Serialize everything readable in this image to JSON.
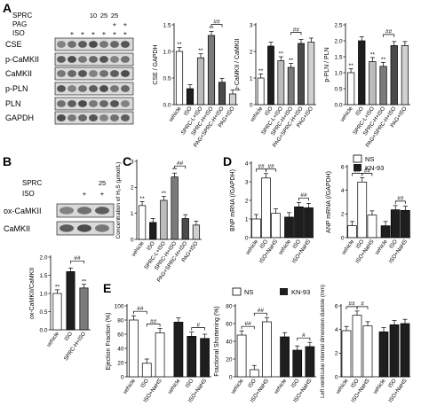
{
  "panel_letters": [
    "A",
    "B",
    "C",
    "D",
    "E"
  ],
  "blot_a": {
    "header_rows": [
      {
        "label": "SPRC",
        "marks": [
          "",
          "",
          "",
          "10",
          "25",
          "25",
          ""
        ]
      },
      {
        "label": "PAG",
        "marks": [
          "",
          "",
          "",
          "",
          "",
          "+",
          "+"
        ]
      },
      {
        "label": "ISO",
        "marks": [
          "",
          "+",
          "+",
          "+",
          "+",
          "+",
          "+"
        ]
      }
    ],
    "bands": [
      "CSE",
      "p-CaMKII",
      "CaMKII",
      "p-PLN",
      "PLN",
      "GAPDH"
    ]
  },
  "blot_b": {
    "header_rows": [
      {
        "label": "SPRC",
        "marks": [
          "",
          "",
          "25"
        ]
      },
      {
        "label": "ISO",
        "marks": [
          "",
          "+",
          "+"
        ]
      }
    ],
    "bands": [
      "ox-CaMKII",
      "CaMKII"
    ]
  },
  "colors": {
    "white_bar": "#ffffff",
    "black_bar": "#1e1e1e",
    "grey_bar": "#7a7a7a",
    "light_grey_bar": "#bcbcbc",
    "dark_grey_bar": "#4a4a4a",
    "blot_bg": "#d9d9d9",
    "blot_band": "#3a3a3a"
  },
  "chart_data": [
    {
      "type": "bar",
      "ylabel": "CSE / GAPDH",
      "ylim": [
        0,
        1.5
      ],
      "yticks": [
        "0.0",
        "0.5",
        "1.0",
        "1.5"
      ],
      "categories": [
        "vehicle",
        "ISO",
        "SPRC-L+ISO",
        "SPRC-H+ISO",
        "PAG+SPRC-H+ISO",
        "PAG+ISO"
      ],
      "values": [
        1.0,
        0.3,
        0.88,
        1.3,
        0.42,
        0.2
      ],
      "colors": [
        "#ffffff",
        "#1e1e1e",
        "#bcbcbc",
        "#7a7a7a",
        "#4a4a4a",
        "#d0d0d0"
      ],
      "marks": [
        "**",
        "",
        "**",
        "**",
        "##",
        ""
      ]
    },
    {
      "type": "bar",
      "ylabel": "p-CaMKII / CaMKII",
      "ylim": [
        0,
        3
      ],
      "yticks": [
        "0",
        "1",
        "2",
        "3"
      ],
      "categories": [
        "vehicle",
        "ISO",
        "SPRC-L+ISO",
        "SPRC-H+ISO",
        "PAG+SPRC-H+ISO",
        "PAG+ISO"
      ],
      "values": [
        1.0,
        2.2,
        1.65,
        1.4,
        2.3,
        2.35
      ],
      "colors": [
        "#ffffff",
        "#1e1e1e",
        "#bcbcbc",
        "#7a7a7a",
        "#4a4a4a",
        "#d0d0d0"
      ],
      "marks": [
        "**",
        "",
        "**",
        "**",
        "##",
        ""
      ]
    },
    {
      "type": "bar",
      "ylabel": "p-PLN / PLN",
      "ylim": [
        0,
        2.5
      ],
      "yticks": [
        "0.0",
        "0.5",
        "1.0",
        "1.5",
        "2.0",
        "2.5"
      ],
      "categories": [
        "vehicle",
        "ISO",
        "SPRC-L+ISO",
        "SPRC-H+ISO",
        "PAG+SPRC-H+ISO",
        "PAG+ISO"
      ],
      "values": [
        1.0,
        2.0,
        1.35,
        1.2,
        1.85,
        1.85
      ],
      "colors": [
        "#ffffff",
        "#1e1e1e",
        "#bcbcbc",
        "#7a7a7a",
        "#4a4a4a",
        "#d0d0d0"
      ],
      "marks": [
        "**",
        "",
        "**",
        "**",
        "##",
        ""
      ]
    },
    {
      "type": "bar",
      "ylabel": "ox-CaMKII/CaMKII",
      "ylim": [
        0,
        2
      ],
      "yticks": [
        "0.0",
        "0.5",
        "1.0",
        "1.5",
        "2.0"
      ],
      "categories": [
        "vehicle",
        "ISO",
        "SPRC-H+ISO"
      ],
      "values": [
        1.0,
        1.6,
        1.15
      ],
      "colors": [
        "#ffffff",
        "#1e1e1e",
        "#7a7a7a"
      ],
      "marks": [
        "**",
        "",
        "**"
      ],
      "bracket": "##"
    },
    {
      "type": "bar",
      "ylabel": "Concentration of H₂S (μmol/L)",
      "ylim": [
        0,
        3
      ],
      "yticks": [
        "0",
        "1",
        "2",
        "3"
      ],
      "categories": [
        "vehicle",
        "ISO",
        "SPRC-L+ISO",
        "SPRC-H+ISO",
        "PAG+SPRC-H+ISO",
        "PAG+ISO"
      ],
      "values": [
        1.3,
        0.65,
        1.5,
        2.4,
        0.8,
        0.55
      ],
      "colors": [
        "#ffffff",
        "#1e1e1e",
        "#bcbcbc",
        "#7a7a7a",
        "#4a4a4a",
        "#d0d0d0"
      ],
      "marks": [
        "**",
        "",
        "**",
        "**",
        "",
        ""
      ],
      "bracket": "##"
    },
    {
      "type": "bar",
      "ylabel": "BNP mRNA (/GAPDH)",
      "ylim": [
        0,
        4
      ],
      "yticks": [
        "0",
        "1",
        "2",
        "3",
        "4"
      ],
      "categories": [
        "vehicle",
        "ISO",
        "ISO+NaHS"
      ],
      "series": [
        {
          "name": "NS",
          "values": [
            1.0,
            3.2,
            1.3
          ]
        },
        {
          "name": "KN-93",
          "values": [
            1.1,
            1.65,
            1.6
          ]
        }
      ],
      "brackets": [
        "##",
        "##",
        "##"
      ]
    },
    {
      "type": "bar",
      "ylabel": "ANP mRNA (/GAPDH)",
      "ylim": [
        0,
        6
      ],
      "yticks": [
        "0",
        "2",
        "4",
        "6"
      ],
      "categories": [
        "vehicle",
        "ISO",
        "ISO+NaHS"
      ],
      "series": [
        {
          "name": "NS",
          "values": [
            1.0,
            4.7,
            1.9
          ]
        },
        {
          "name": "KN-93",
          "values": [
            1.0,
            2.35,
            2.3
          ]
        }
      ],
      "brackets": [
        "##",
        "##",
        "##"
      ]
    },
    {
      "type": "bar",
      "ylabel": "Ejection Fraction (%)",
      "ylim": [
        0,
        100
      ],
      "yticks": [
        "0",
        "20",
        "40",
        "60",
        "80",
        "100"
      ],
      "categories": [
        "vehicle",
        "ISO",
        "ISO+NaHS"
      ],
      "series": [
        {
          "name": "NS",
          "values": [
            80,
            19,
            62
          ]
        },
        {
          "name": "KN-93",
          "values": [
            77,
            57,
            54
          ]
        }
      ],
      "brackets": [
        "##",
        "##",
        "#"
      ]
    },
    {
      "type": "bar",
      "ylabel": "Fractional Shortening (%)",
      "ylim": [
        0,
        80
      ],
      "yticks": [
        "0",
        "20",
        "40",
        "60",
        "80"
      ],
      "categories": [
        "vehicle",
        "ISO",
        "ISO+NaHS"
      ],
      "series": [
        {
          "name": "NS",
          "values": [
            47,
            8,
            62
          ]
        },
        {
          "name": "KN-93",
          "values": [
            45,
            30,
            34
          ]
        }
      ],
      "brackets": [
        "##",
        "##",
        "#"
      ]
    },
    {
      "type": "bar",
      "ylabel": "Left ventricular internal dimension diastole (mm)",
      "ylim": [
        0,
        6
      ],
      "yticks": [
        "0",
        "2",
        "4",
        "6"
      ],
      "categories": [
        "vehicle",
        "ISO",
        "ISO+NaHS"
      ],
      "series": [
        {
          "name": "NS",
          "values": [
            3.9,
            5.2,
            4.3
          ]
        },
        {
          "name": "KN-93",
          "values": [
            3.8,
            4.4,
            4.5
          ]
        }
      ],
      "brackets": [
        "##",
        "#",
        ""
      ]
    }
  ],
  "legends": {
    "d": [
      {
        "name": "NS",
        "color": "#ffffff"
      },
      {
        "name": "KN-93",
        "color": "#1e1e1e"
      }
    ],
    "e": [
      {
        "name": "NS",
        "color": "#ffffff"
      },
      {
        "name": "KN-93",
        "color": "#1e1e1e"
      }
    ]
  }
}
